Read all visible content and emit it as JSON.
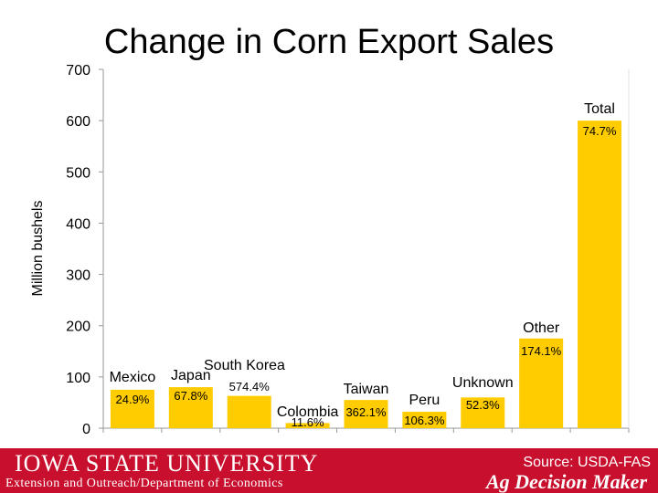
{
  "chart_data": {
    "type": "bar",
    "title": "Change in Corn Export Sales",
    "ylabel": "Million bushels",
    "xlabel": "",
    "ylim": [
      0,
      700
    ],
    "yticks": [
      0,
      100,
      200,
      300,
      400,
      500,
      600,
      700
    ],
    "grid": false,
    "legend": "none",
    "bar_color": "#ffcc00",
    "categories": [
      "Mexico",
      "Japan",
      "South Korea",
      "Colombia",
      "Taiwan",
      "Peru",
      "Unknown",
      "Other",
      "Total"
    ],
    "values": [
      75,
      80,
      63,
      10,
      55,
      32,
      60,
      175,
      600
    ],
    "data_labels": [
      "24.9%",
      "67.8%",
      "574.4%",
      "11.6%",
      "362.1%",
      "106.3%",
      "52.3%",
      "174.1%",
      "74.7%"
    ],
    "tick_label_texts": [
      "0",
      "100",
      "200",
      "300",
      "400",
      "500",
      "600",
      "700"
    ]
  },
  "footer": {
    "university": "IOWA STATE UNIVERSITY",
    "department": "Extension and Outreach/Department of Economics",
    "source": "Source: USDA-FAS",
    "brand": "Ag Decision Maker",
    "color": "#c8102e"
  }
}
